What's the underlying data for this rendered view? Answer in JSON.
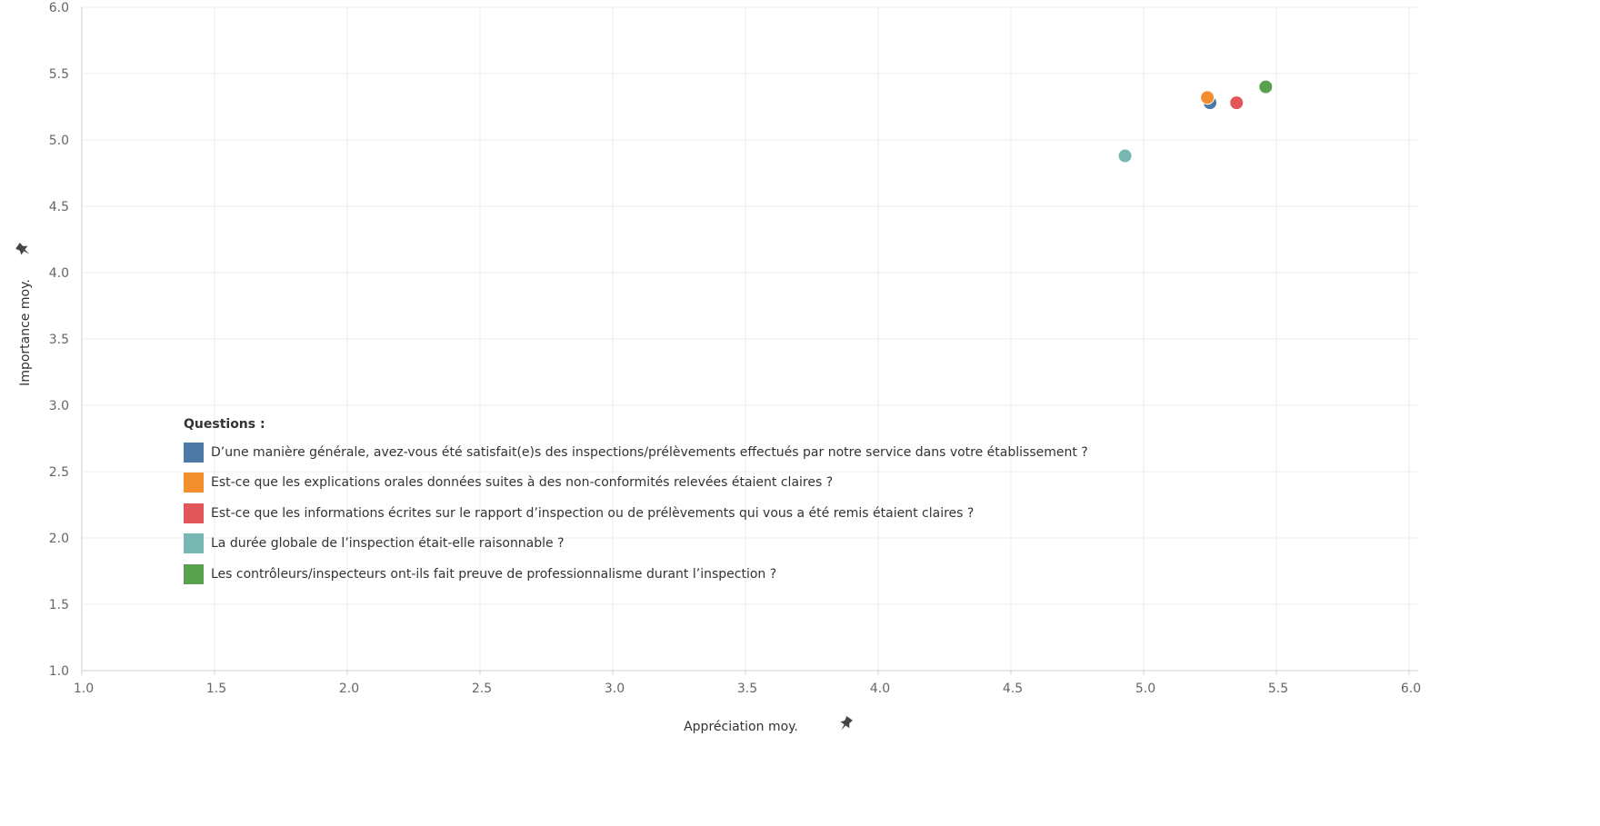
{
  "chart_data": {
    "type": "scatter",
    "xlabel": "Appréciation moy.",
    "ylabel": "Importance moy.",
    "xlim": [
      1.0,
      6.0
    ],
    "ylim": [
      1.0,
      6.0
    ],
    "x_ticks": [
      "1.0",
      "1.5",
      "2.0",
      "2.5",
      "3.0",
      "3.5",
      "4.0",
      "4.5",
      "5.0",
      "5.5",
      "6.0"
    ],
    "y_ticks": [
      "1.0",
      "1.5",
      "2.0",
      "2.5",
      "3.0",
      "3.5",
      "4.0",
      "4.5",
      "5.0",
      "5.5",
      "6.0"
    ],
    "grid": true,
    "axis_pin_icon": "pin-icon",
    "legend": {
      "title": "Questions :",
      "placement": "bottom-left"
    },
    "series": [
      {
        "name": "D’une manière générale, avez-vous été satisfait(e)s des inspections/prélèvements effectués par notre service dans votre établissement ?",
        "color": "#4e79a7",
        "x": 5.25,
        "y": 5.28
      },
      {
        "name": "Est-ce que les explications orales données suites à des non-conformités relevées étaient claires ?",
        "color": "#f28e2b",
        "x": 5.24,
        "y": 5.32
      },
      {
        "name": "Est-ce que les informations écrites sur le rapport d’inspection ou de prélèvements qui vous a été remis étaient claires ?",
        "color": "#e15759",
        "x": 5.35,
        "y": 5.28
      },
      {
        "name": "La durée globale de l’inspection était-elle raisonnable ?",
        "color": "#76b7b2",
        "x": 4.93,
        "y": 4.88
      },
      {
        "name": "Les contrôleurs/inspecteurs ont-ils fait preuve de professionnalisme durant l’inspection ?",
        "color": "#59a14f",
        "x": 5.46,
        "y": 5.4
      }
    ]
  }
}
